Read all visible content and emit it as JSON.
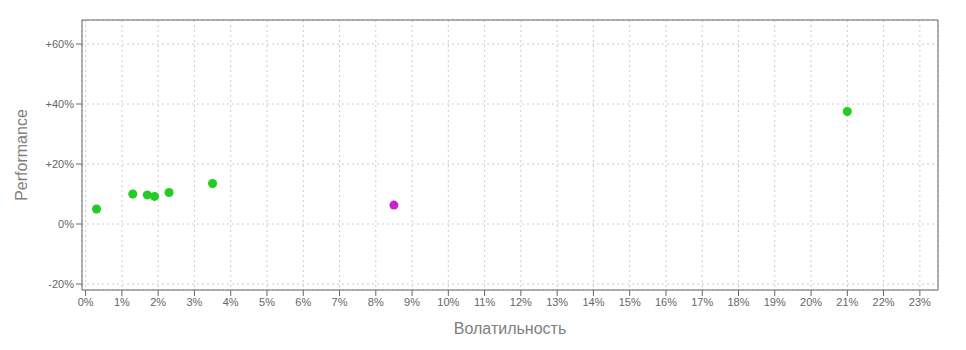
{
  "chart_data": {
    "type": "scatter",
    "xlabel": "Волатильность",
    "ylabel": "Performance",
    "xlim": [
      -0.001,
      0.235
    ],
    "ylim": [
      -0.22,
      0.68
    ],
    "xticks": [
      {
        "value": 0.0,
        "label": "0%"
      },
      {
        "value": 0.01,
        "label": "1%"
      },
      {
        "value": 0.02,
        "label": "2%"
      },
      {
        "value": 0.03,
        "label": "3%"
      },
      {
        "value": 0.04,
        "label": "4%"
      },
      {
        "value": 0.05,
        "label": "5%"
      },
      {
        "value": 0.06,
        "label": "6%"
      },
      {
        "value": 0.07,
        "label": "7%"
      },
      {
        "value": 0.08,
        "label": "8%"
      },
      {
        "value": 0.09,
        "label": "9%"
      },
      {
        "value": 0.1,
        "label": "10%"
      },
      {
        "value": 0.11,
        "label": "11%"
      },
      {
        "value": 0.12,
        "label": "12%"
      },
      {
        "value": 0.13,
        "label": "13%"
      },
      {
        "value": 0.14,
        "label": "14%"
      },
      {
        "value": 0.15,
        "label": "15%"
      },
      {
        "value": 0.16,
        "label": "16%"
      },
      {
        "value": 0.17,
        "label": "17%"
      },
      {
        "value": 0.18,
        "label": "18%"
      },
      {
        "value": 0.19,
        "label": "19%"
      },
      {
        "value": 0.2,
        "label": "20%"
      },
      {
        "value": 0.21,
        "label": "21%"
      },
      {
        "value": 0.22,
        "label": "22%"
      },
      {
        "value": 0.23,
        "label": "23%"
      }
    ],
    "yticks": [
      {
        "value": -0.2,
        "label": "-20%"
      },
      {
        "value": 0.0,
        "label": "0%"
      },
      {
        "value": 0.2,
        "label": "+20%"
      },
      {
        "value": 0.4,
        "label": "+40%"
      },
      {
        "value": 0.6,
        "label": "+60%"
      }
    ],
    "grid": true,
    "series": [
      {
        "color": "#22cc22",
        "x": [
          0.003,
          0.013,
          0.017,
          0.019,
          0.023,
          0.035,
          0.21
        ],
        "values": [
          0.05,
          0.1,
          0.097,
          0.092,
          0.105,
          0.135,
          0.375
        ]
      },
      {
        "color": "#cc22cc",
        "x": [
          0.085
        ],
        "values": [
          0.063
        ]
      }
    ]
  }
}
